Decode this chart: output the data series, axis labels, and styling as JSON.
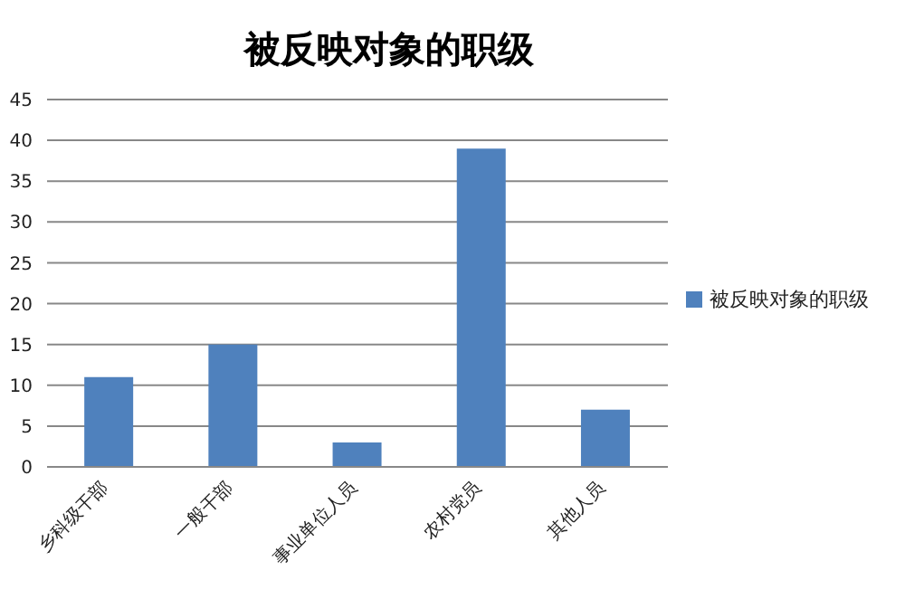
{
  "chart_data": {
    "type": "bar",
    "title": "被反映对象的职级",
    "categories": [
      "乡科级干部",
      "一般干部",
      "事业单位人员",
      "农村党员",
      "其他人员"
    ],
    "series": [
      {
        "name": "被反映对象的职级",
        "color": "#4f81bd",
        "values": [
          11,
          15,
          3,
          39,
          7
        ]
      }
    ],
    "ylim": [
      0,
      45
    ],
    "yticks": [
      0,
      5,
      10,
      15,
      20,
      25,
      30,
      35,
      40,
      45
    ],
    "grid": "y",
    "legend": "right"
  }
}
